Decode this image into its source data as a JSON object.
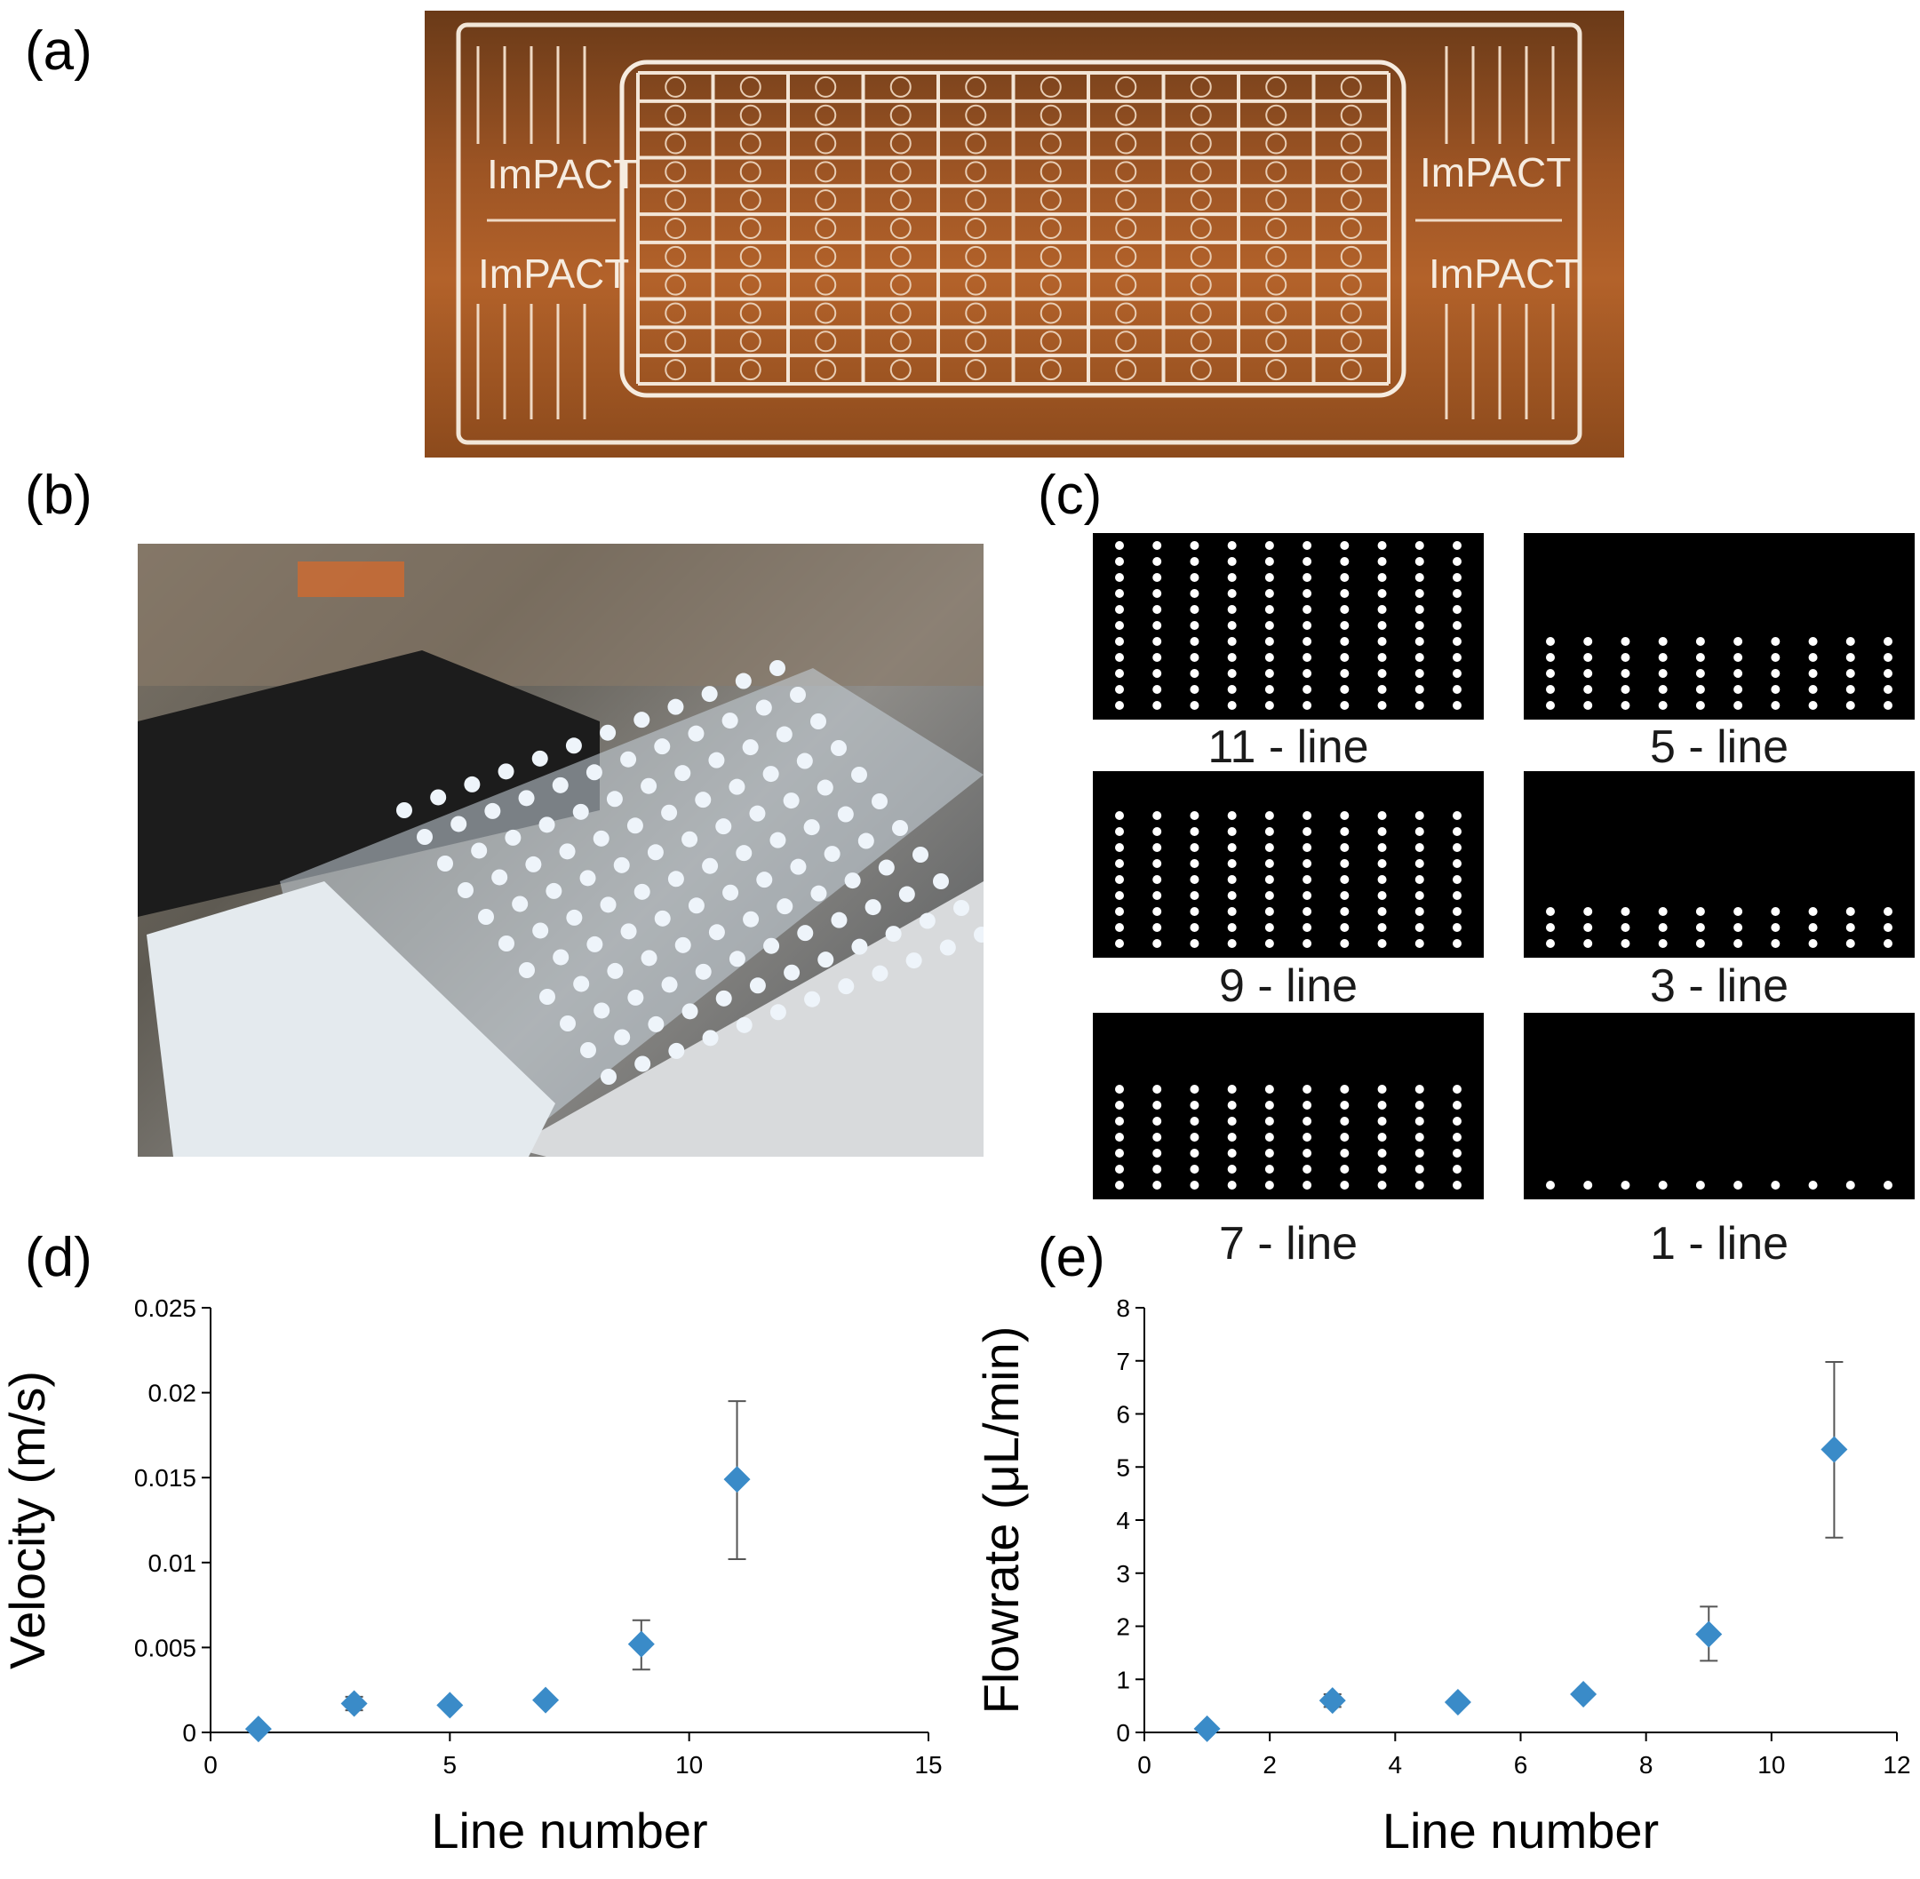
{
  "panel_labels": {
    "a": "(a)",
    "b": "(b)",
    "c": "(c)",
    "d": "(d)",
    "e": "(e)"
  },
  "photo_a": {
    "logo_text": "ImPACT",
    "rows": 11,
    "cols": 10
  },
  "photo_b": {
    "rows": 11,
    "cols": 12
  },
  "panel_c": {
    "grids": [
      {
        "caption": "11 - line",
        "lines": 11
      },
      {
        "caption": "5 - line",
        "lines": 5
      },
      {
        "caption": "9 - line",
        "lines": 9
      },
      {
        "caption": "3 - line",
        "lines": 3
      },
      {
        "caption": "7 - line",
        "lines": 7
      },
      {
        "caption": "1 - line",
        "lines": 1
      }
    ],
    "columns": 10
  },
  "colors": {
    "marker": "#3a8bc8",
    "error_bar": "#555555",
    "axis": "#000000"
  },
  "chart_data": [
    {
      "type": "scatter",
      "panel": "d",
      "xlabel": "Line number",
      "ylabel": "Velocity (m/s)",
      "xlim": [
        0,
        15
      ],
      "ylim": [
        0,
        0.025
      ],
      "xticks": [
        "0",
        "5",
        "10",
        "15"
      ],
      "yticks": [
        "0",
        "0.005",
        "0.01",
        "0.015",
        "0.02",
        "0.025"
      ],
      "xtick_values": [
        0,
        5,
        10,
        15
      ],
      "ytick_values": [
        0,
        0.005,
        0.01,
        0.015,
        0.02,
        0.025
      ],
      "x": [
        1,
        3,
        5,
        7,
        9,
        11
      ],
      "y": [
        0.0002,
        0.0017,
        0.0016,
        0.0019,
        0.0052,
        0.0149
      ],
      "err_low": [
        0.0001,
        0.0013,
        0.0015,
        0.0018,
        0.0037,
        0.0102
      ],
      "err_high": [
        0.0003,
        0.0021,
        0.0017,
        0.002,
        0.0066,
        0.0195
      ]
    },
    {
      "type": "scatter",
      "panel": "e",
      "xlabel": "Line number",
      "ylabel": "Flowrate  (μL/min)",
      "xlim": [
        0,
        12
      ],
      "ylim": [
        0,
        8
      ],
      "xticks": [
        "0",
        "2",
        "4",
        "6",
        "8",
        "10",
        "12"
      ],
      "yticks": [
        "0",
        "1",
        "2",
        "3",
        "4",
        "5",
        "6",
        "7",
        "8"
      ],
      "xtick_values": [
        0,
        2,
        4,
        6,
        8,
        10,
        12
      ],
      "ytick_values": [
        0,
        1,
        2,
        3,
        4,
        5,
        6,
        7,
        8
      ],
      "x": [
        1,
        3,
        5,
        7,
        9,
        11
      ],
      "y": [
        0.07,
        0.6,
        0.57,
        0.72,
        1.85,
        5.33
      ],
      "err_low": [
        0.04,
        0.48,
        0.53,
        0.68,
        1.35,
        3.67
      ],
      "err_high": [
        0.1,
        0.72,
        0.61,
        0.76,
        2.37,
        6.98
      ]
    }
  ]
}
